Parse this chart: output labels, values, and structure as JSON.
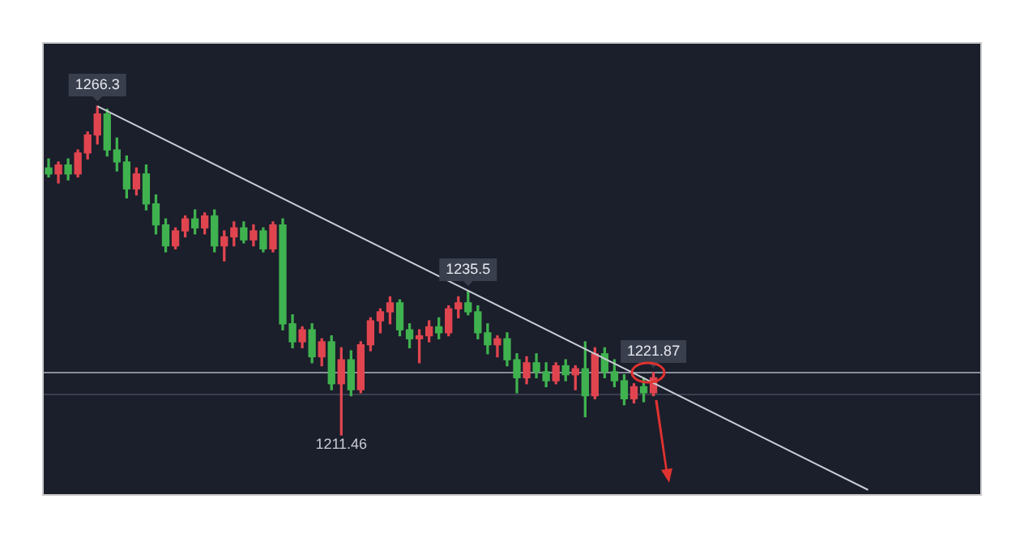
{
  "chart_data": {
    "type": "candlestick",
    "categories": [
      null,
      null,
      null,
      null,
      null,
      null,
      null,
      null,
      null,
      null,
      null,
      null,
      null,
      null,
      null,
      null,
      null,
      null,
      null,
      null,
      null,
      null,
      null,
      null,
      null,
      null,
      null,
      null,
      null,
      null,
      null,
      null,
      null,
      null,
      null,
      null,
      null,
      null,
      null,
      null,
      null,
      null,
      null,
      null,
      null,
      null,
      null,
      null,
      null,
      null,
      null,
      null,
      null,
      null,
      null,
      null,
      null,
      null,
      null,
      null,
      null,
      null,
      null,
      null,
      null,
      null,
      null,
      null,
      null,
      null,
      null,
      null,
      null,
      null,
      null,
      null,
      null,
      null,
      null,
      null,
      null,
      null,
      null,
      null,
      null,
      null,
      null,
      null,
      null,
      null,
      null,
      null,
      null,
      null,
      null,
      null
    ],
    "ohlc": [
      [
        1256,
        1257.5,
        1254.5,
        1255
      ],
      [
        1255,
        1257,
        1253.5,
        1256.5
      ],
      [
        1256.5,
        1257.5,
        1254,
        1255
      ],
      [
        1255,
        1259,
        1254.5,
        1258.5
      ],
      [
        1258.5,
        1262,
        1257.5,
        1261.5
      ],
      [
        1261.5,
        1266.3,
        1260,
        1265
      ],
      [
        1265,
        1265.8,
        1258,
        1259
      ],
      [
        1259,
        1261,
        1255.5,
        1257
      ],
      [
        1257,
        1258,
        1251,
        1252.5
      ],
      [
        1252.5,
        1256,
        1251.5,
        1255
      ],
      [
        1255,
        1256.5,
        1249,
        1250
      ],
      [
        1250,
        1251.5,
        1245,
        1246.5
      ],
      [
        1246.5,
        1247.5,
        1242,
        1243
      ],
      [
        1243,
        1246,
        1242.5,
        1245.5
      ],
      [
        1245.5,
        1248,
        1244.5,
        1247.5
      ],
      [
        1247.5,
        1249,
        1245,
        1246
      ],
      [
        1246,
        1248.5,
        1245,
        1248
      ],
      [
        1248,
        1249,
        1242,
        1243
      ],
      [
        1243,
        1245.5,
        1240.5,
        1244.5
      ],
      [
        1244.5,
        1247,
        1243,
        1246
      ],
      [
        1246,
        1247,
        1243.5,
        1244
      ],
      [
        1244,
        1246.5,
        1243,
        1245.5
      ],
      [
        1245.5,
        1246,
        1242,
        1242.5
      ],
      [
        1242.5,
        1247,
        1242,
        1246.5
      ],
      [
        1246.5,
        1247.5,
        1229,
        1230
      ],
      [
        1230,
        1231.5,
        1226,
        1227
      ],
      [
        1227,
        1229.5,
        1226,
        1229
      ],
      [
        1229,
        1230,
        1223.5,
        1224.5
      ],
      [
        1224.5,
        1227.5,
        1223,
        1227
      ],
      [
        1227,
        1228,
        1219,
        1220
      ],
      [
        1220,
        1226,
        1211.46,
        1224
      ],
      [
        1224,
        1225.5,
        1218,
        1219
      ],
      [
        1219,
        1227,
        1218.5,
        1226.5
      ],
      [
        1226.5,
        1231,
        1225.5,
        1230.5
      ],
      [
        1230.5,
        1232.5,
        1228.5,
        1232
      ],
      [
        1232,
        1234.5,
        1230,
        1233.5
      ],
      [
        1233.5,
        1234,
        1228,
        1229
      ],
      [
        1229,
        1230,
        1226,
        1227.5
      ],
      [
        1227.5,
        1229,
        1223.5,
        1228
      ],
      [
        1228,
        1230.5,
        1227,
        1229.5
      ],
      [
        1229.5,
        1231,
        1227.5,
        1228.5
      ],
      [
        1228.5,
        1233,
        1228,
        1232.5
      ],
      [
        1232.5,
        1234.5,
        1231,
        1233.5
      ],
      [
        1233.5,
        1235.5,
        1231.5,
        1232
      ],
      [
        1232,
        1233,
        1227.5,
        1228.5
      ],
      [
        1228.5,
        1230,
        1225,
        1226.5
      ],
      [
        1226.5,
        1228,
        1224.5,
        1227.5
      ],
      [
        1227.5,
        1228.5,
        1223,
        1224
      ],
      [
        1224,
        1225,
        1218.5,
        1221
      ],
      [
        1221,
        1224.5,
        1220,
        1223.5
      ],
      [
        1223.5,
        1225,
        1221,
        1222
      ],
      [
        1222,
        1223.5,
        1219.5,
        1220.5
      ],
      [
        1220.5,
        1223.5,
        1220,
        1223
      ],
      [
        1223,
        1224,
        1220.5,
        1221.5
      ],
      [
        1221.5,
        1223,
        1219,
        1222.5
      ],
      [
        1222.5,
        1227,
        1214.5,
        1218
      ],
      [
        1218,
        1226,
        1217.5,
        1225
      ],
      [
        1225,
        1226,
        1221,
        1222
      ],
      [
        1222,
        1224,
        1219.5,
        1220.5
      ],
      [
        1220.5,
        1221.5,
        1216.5,
        1217.5
      ],
      [
        1217.5,
        1220,
        1216.8,
        1219.5
      ],
      [
        1219.5,
        1221,
        1217,
        1218.5
      ],
      [
        1218.5,
        1221.87,
        1218,
        1221
      ],
      null,
      null,
      null,
      null,
      null,
      null,
      null,
      null,
      null,
      null,
      null,
      null,
      null,
      null,
      null,
      null,
      null,
      null,
      null,
      null,
      null,
      null,
      null,
      null,
      null,
      null,
      null,
      null,
      null,
      null,
      null,
      null,
      null
    ],
    "series": [
      {
        "type": "line",
        "color": "#c9ccd4",
        "values": [
          null,
          null,
          null,
          null,
          null,
          1266.3,
          null,
          null,
          null,
          null,
          null,
          null,
          null,
          null,
          null,
          null,
          null,
          null,
          null,
          null,
          null,
          null,
          null,
          null,
          null,
          null,
          null,
          null,
          null,
          null,
          null,
          null,
          null,
          null,
          null,
          null,
          null,
          null,
          null,
          null,
          null,
          null,
          null,
          null,
          null,
          null,
          null,
          null,
          null,
          null,
          null,
          null,
          null,
          null,
          null,
          null,
          null,
          null,
          null,
          null,
          null,
          null,
          null,
          null,
          null,
          null,
          null,
          null,
          null,
          null,
          null,
          null,
          null,
          null,
          null,
          null,
          null,
          null,
          null,
          null,
          null,
          null,
          null,
          null,
          1202.3,
          null,
          null,
          null,
          null,
          null,
          null,
          null,
          null,
          null,
          null,
          null
        ]
      }
    ],
    "ref_lines": [
      {
        "axis": "y",
        "value": 1221.87,
        "color": "#8a8e99"
      },
      {
        "axis": "y",
        "value": 1218.2,
        "color": "#3a3f4f"
      }
    ],
    "annotations": [
      {
        "text": "1266.3",
        "y": 1266.3
      },
      {
        "text": "1235.5",
        "y": 1235.5
      },
      {
        "text": "1221.87",
        "y": 1221.87
      },
      {
        "text": "1211.46",
        "y": 1211.46
      }
    ],
    "legend": false,
    "tick_labels": false
  }
}
